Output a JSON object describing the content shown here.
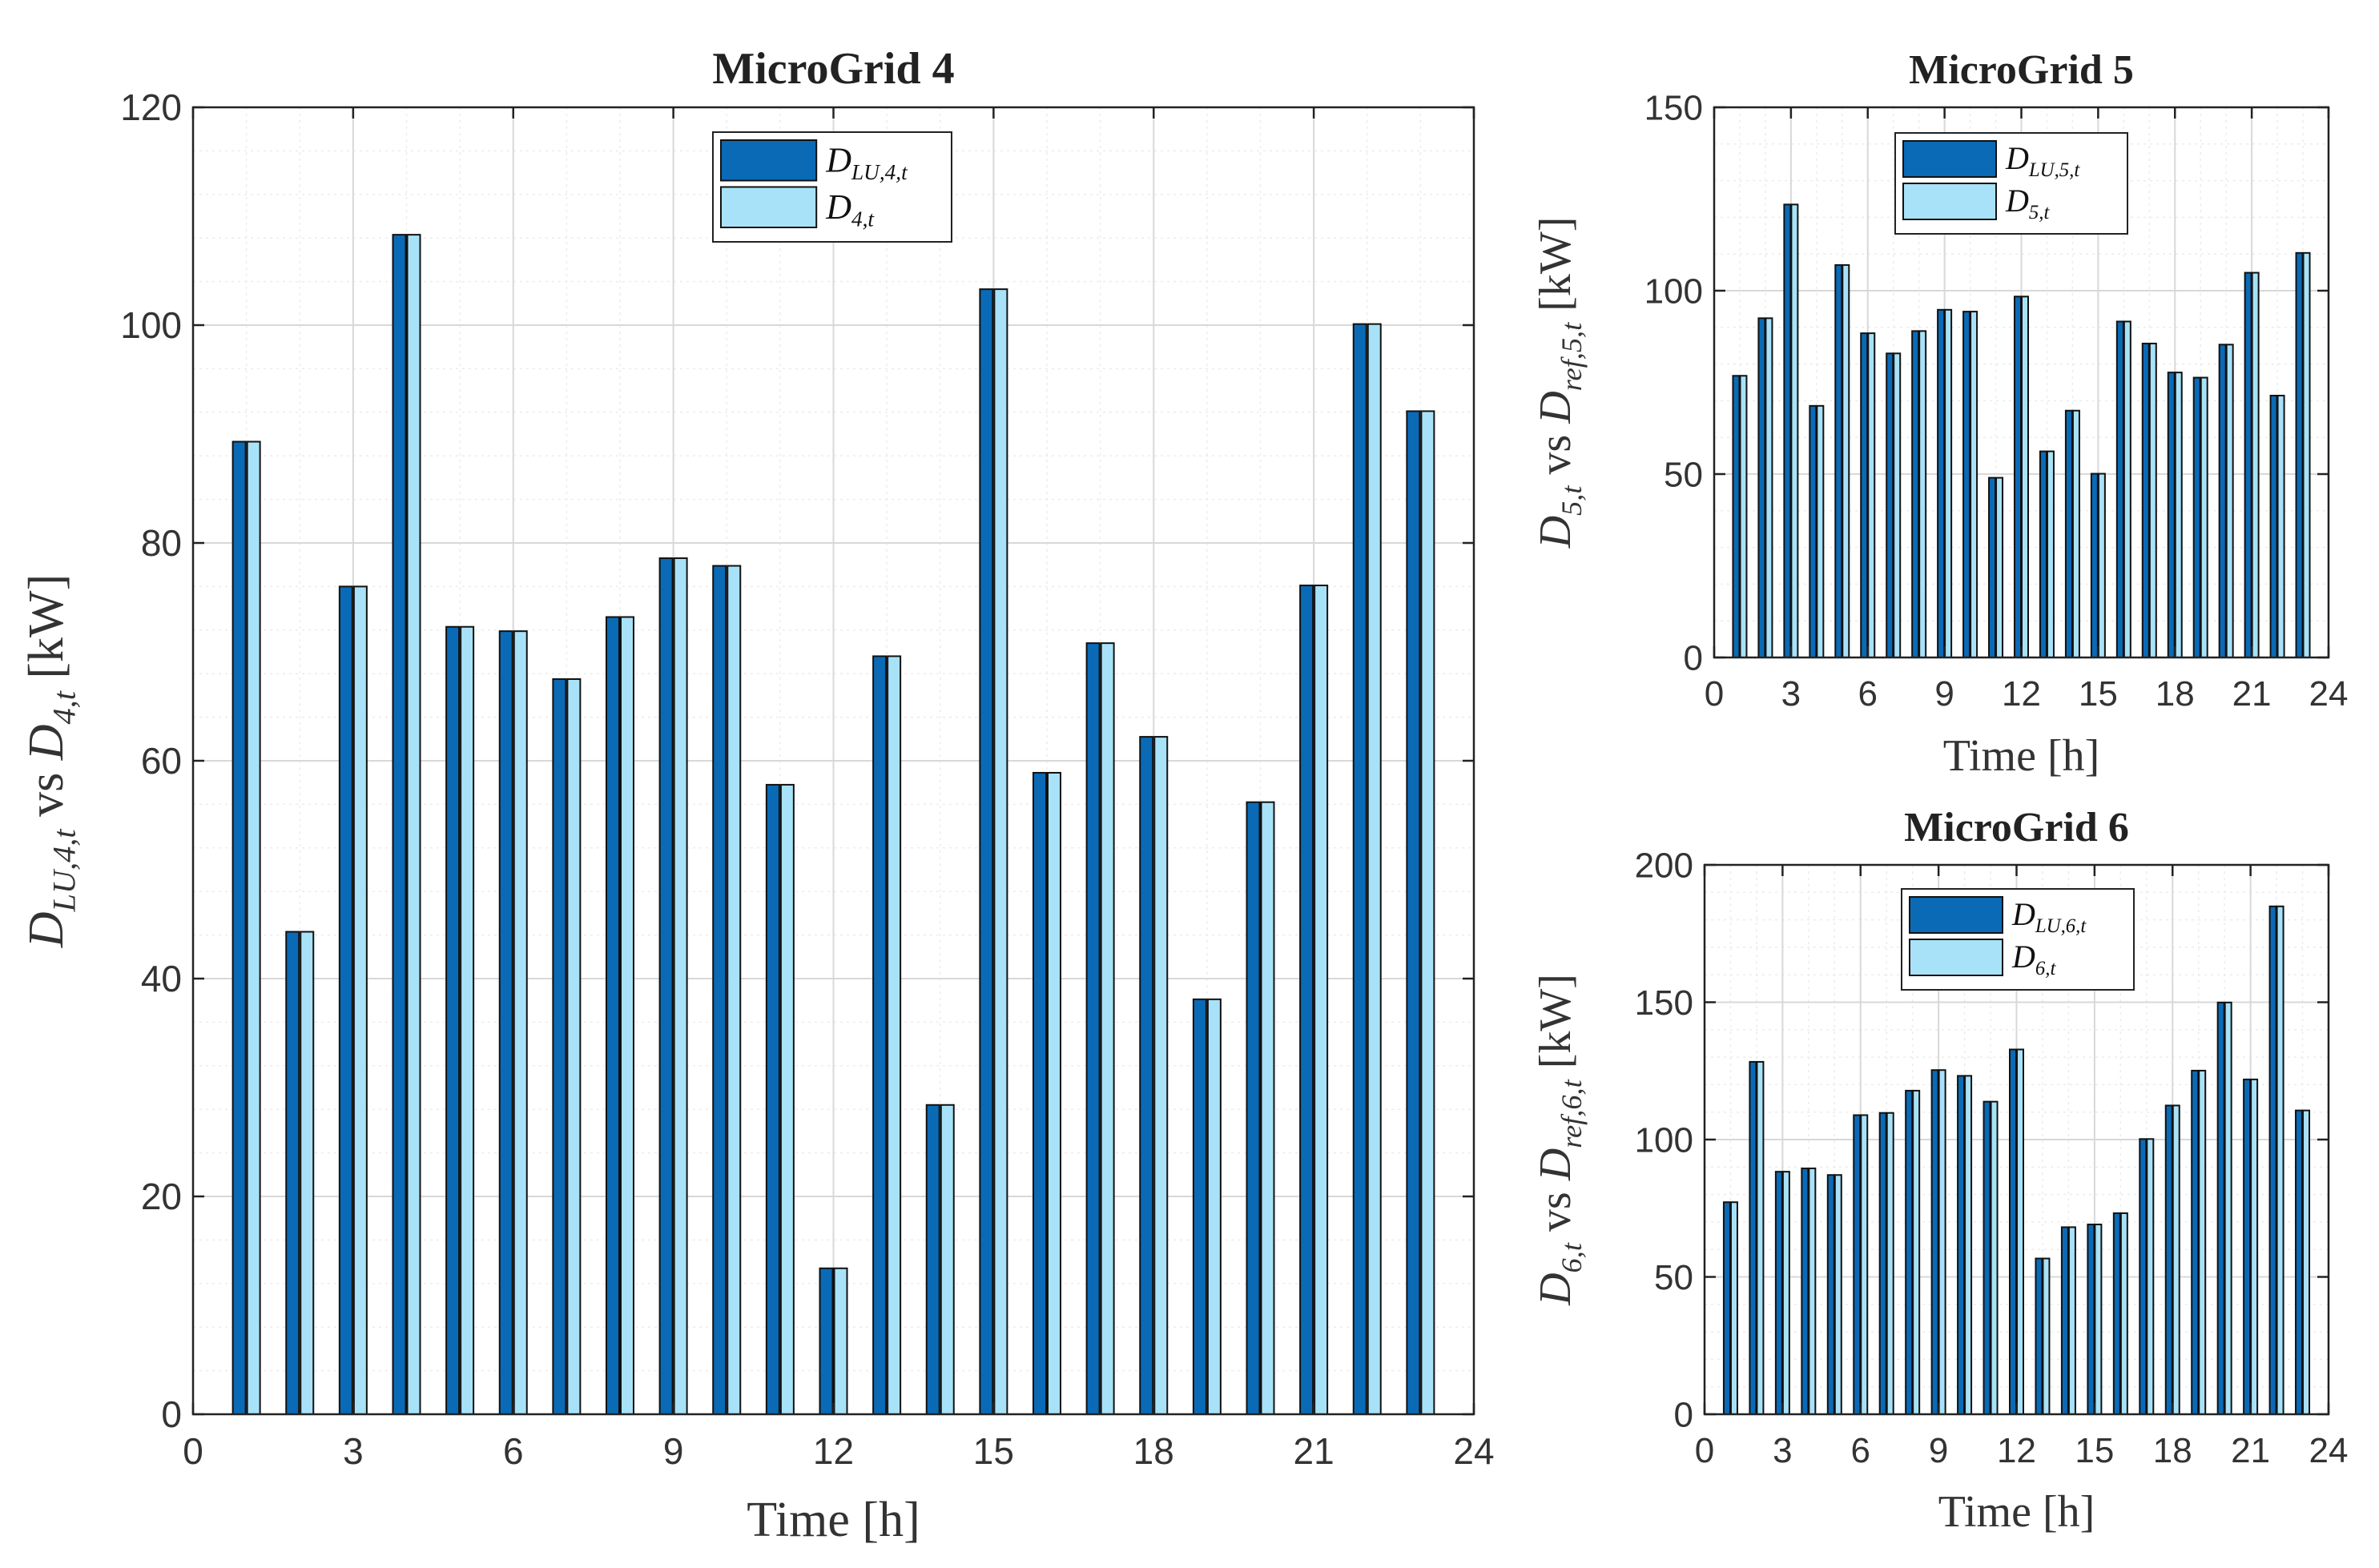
{
  "colors": {
    "dark": "#0a6ab6",
    "light": "#a8e2f8",
    "edge": "#111111",
    "grid": "#d8d8d8",
    "minor": "#ececec"
  },
  "chart_data": [
    {
      "type": "bar",
      "title": "MicroGrid 4",
      "xlabel": "Time [h]",
      "ylabel_parts": [
        "D",
        "LU,4,t",
        " vs ",
        "D",
        "4,t",
        " [kW]"
      ],
      "xlim": [
        0,
        24
      ],
      "ylim": [
        0,
        120
      ],
      "xticks": [
        0,
        3,
        6,
        9,
        12,
        15,
        18,
        21,
        24
      ],
      "yticks": [
        0,
        20,
        40,
        60,
        80,
        100,
        120
      ],
      "legend_position": "top-center",
      "x": [
        1,
        2,
        3,
        4,
        5,
        6,
        7,
        8,
        9,
        10,
        11,
        12,
        13,
        14,
        15,
        16,
        17,
        18,
        19,
        20,
        21,
        22,
        23
      ],
      "series": [
        {
          "name_parts": [
            "D",
            "LU,4,t"
          ],
          "color": "#0a6ab6",
          "values": [
            89.3,
            44.3,
            76,
            108.3,
            72.3,
            71.9,
            67.5,
            73.2,
            78.6,
            77.9,
            57.8,
            13.4,
            69.6,
            28.4,
            103.3,
            58.9,
            70.8,
            62.2,
            38.1,
            56.2,
            76.1,
            100.1,
            92.1
          ]
        },
        {
          "name_parts": [
            "D",
            "4,t"
          ],
          "color": "#a8e2f8",
          "values": [
            89.3,
            44.3,
            76,
            108.3,
            72.3,
            71.9,
            67.5,
            73.2,
            78.6,
            77.9,
            57.8,
            13.4,
            69.6,
            28.4,
            103.3,
            58.9,
            70.8,
            62.2,
            38.1,
            56.2,
            76.1,
            100.1,
            92.1
          ]
        }
      ]
    },
    {
      "type": "bar",
      "title": "MicroGrid 5",
      "xlabel": "Time [h]",
      "ylabel_parts": [
        "D",
        "5,t",
        " vs ",
        "D",
        "ref,5,t",
        " [kW]"
      ],
      "xlim": [
        0,
        24
      ],
      "ylim": [
        0,
        150
      ],
      "xticks": [
        0,
        3,
        6,
        9,
        12,
        15,
        18,
        21,
        24
      ],
      "yticks": [
        0,
        50,
        100,
        150
      ],
      "legend_position": "top-center",
      "x": [
        1,
        2,
        3,
        4,
        5,
        6,
        7,
        8,
        9,
        10,
        11,
        12,
        13,
        14,
        15,
        16,
        17,
        18,
        19,
        20,
        21,
        22,
        23
      ],
      "series": [
        {
          "name_parts": [
            "D",
            "LU,5,t"
          ],
          "color": "#0a6ab6",
          "values": [
            76.8,
            92.5,
            123.5,
            68.6,
            107,
            88.4,
            82.9,
            89,
            94.8,
            94.3,
            49,
            98.4,
            56.2,
            67.3,
            50.1,
            91.6,
            85.6,
            77.7,
            76.3,
            85.3,
            104.9,
            71.4,
            110.3
          ]
        },
        {
          "name_parts": [
            "D",
            "5,t"
          ],
          "color": "#a8e2f8",
          "values": [
            76.8,
            92.5,
            123.5,
            68.6,
            107,
            88.4,
            82.9,
            89,
            94.8,
            94.3,
            49,
            98.4,
            56.2,
            67.3,
            50.1,
            91.6,
            85.6,
            77.7,
            76.3,
            85.3,
            104.9,
            71.4,
            110.3
          ]
        }
      ]
    },
    {
      "type": "bar",
      "title": "MicroGrid 6",
      "xlabel": "Time [h]",
      "ylabel_parts": [
        "D",
        "6,t",
        " vs ",
        "D",
        "ref,6,t",
        " [kW]"
      ],
      "xlim": [
        0,
        24
      ],
      "ylim": [
        0,
        200
      ],
      "xticks": [
        0,
        3,
        6,
        9,
        12,
        15,
        18,
        21,
        24
      ],
      "yticks": [
        0,
        50,
        100,
        150,
        200
      ],
      "legend_position": "top-center",
      "x": [
        1,
        2,
        3,
        4,
        5,
        6,
        7,
        8,
        9,
        10,
        11,
        12,
        13,
        14,
        15,
        16,
        17,
        18,
        19,
        20,
        21,
        22,
        23
      ],
      "series": [
        {
          "name_parts": [
            "D",
            "LU,6,t"
          ],
          "color": "#0a6ab6",
          "values": [
            77.2,
            128.3,
            88.3,
            89.5,
            87.1,
            108.9,
            109.7,
            117.8,
            125.3,
            123.2,
            113.8,
            132.8,
            56.7,
            68.1,
            69.1,
            73.2,
            100.2,
            112.4,
            125.1,
            149.9,
            121.9,
            184.9,
            110.6
          ]
        },
        {
          "name_parts": [
            "D",
            "6,t"
          ],
          "color": "#a8e2f8",
          "values": [
            77.2,
            128.3,
            88.3,
            89.5,
            87.1,
            108.9,
            109.7,
            117.8,
            125.3,
            123.2,
            113.8,
            132.8,
            56.7,
            68.1,
            69.1,
            73.2,
            100.2,
            112.4,
            125.1,
            149.9,
            121.9,
            184.9,
            110.6
          ]
        }
      ]
    }
  ]
}
